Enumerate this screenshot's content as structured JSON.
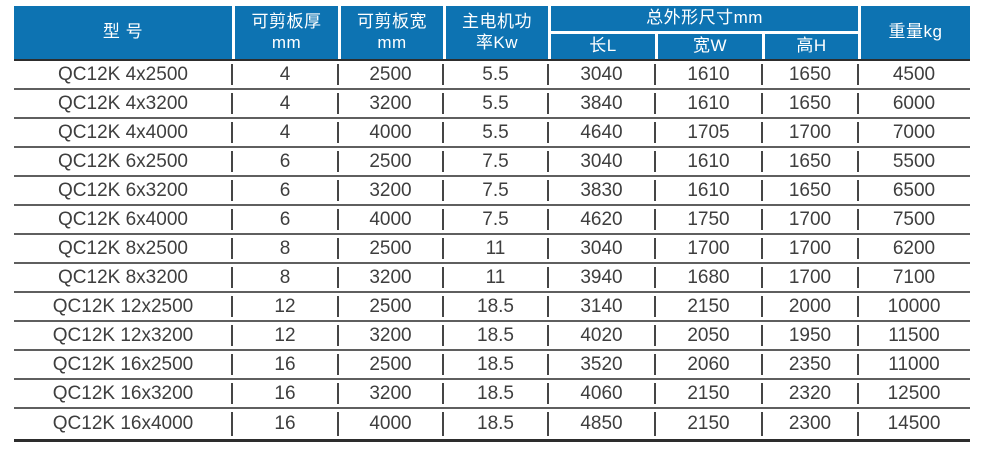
{
  "table": {
    "header": {
      "model": "型 号",
      "thickness_line1": "可剪板厚",
      "thickness_line2": "mm",
      "width_line1": "可剪板宽",
      "width_line2": "mm",
      "power_line1": "主电机功",
      "power_line2": "率Kw",
      "dims_group": "总外形尺寸mm",
      "dim_length": "长L",
      "dim_width": "宽W",
      "dim_height": "高H",
      "weight": "重量kg"
    },
    "rows": [
      [
        "QC12K 4x2500",
        "4",
        "2500",
        "5.5",
        "3040",
        "1610",
        "1650",
        "4500"
      ],
      [
        "QC12K 4x3200",
        "4",
        "3200",
        "5.5",
        "3840",
        "1610",
        "1650",
        "6000"
      ],
      [
        "QC12K 4x4000",
        "4",
        "4000",
        "5.5",
        "4640",
        "1705",
        "1700",
        "7000"
      ],
      [
        "QC12K 6x2500",
        "6",
        "2500",
        "7.5",
        "3040",
        "1610",
        "1650",
        "5500"
      ],
      [
        "QC12K 6x3200",
        "6",
        "3200",
        "7.5",
        "3830",
        "1610",
        "1650",
        "6500"
      ],
      [
        "QC12K 6x4000",
        "6",
        "4000",
        "7.5",
        "4620",
        "1750",
        "1700",
        "7500"
      ],
      [
        "QC12K 8x2500",
        "8",
        "2500",
        "11",
        "3040",
        "1700",
        "1700",
        "6200"
      ],
      [
        "QC12K 8x3200",
        "8",
        "3200",
        "11",
        "3940",
        "1680",
        "1700",
        "7100"
      ],
      [
        "QC12K 12x2500",
        "12",
        "2500",
        "18.5",
        "3140",
        "2150",
        "2000",
        "10000"
      ],
      [
        "QC12K 12x3200",
        "12",
        "3200",
        "18.5",
        "4020",
        "2050",
        "1950",
        "11500"
      ],
      [
        "QC12K 16x2500",
        "16",
        "2500",
        "18.5",
        "3520",
        "2060",
        "2350",
        "11000"
      ],
      [
        "QC12K 16x3200",
        "16",
        "3200",
        "18.5",
        "4060",
        "2150",
        "2320",
        "12500"
      ],
      [
        "QC12K 16x4000",
        "16",
        "4000",
        "18.5",
        "4850",
        "2150",
        "2300",
        "14500"
      ]
    ],
    "colors": {
      "header_bg": "#0d73b2",
      "header_text": "#ffffff",
      "body_text": "#3e3e3e",
      "row_line": "#5f5f5f",
      "column_line": "#454545",
      "outer_line": "#2d2d2d"
    }
  }
}
